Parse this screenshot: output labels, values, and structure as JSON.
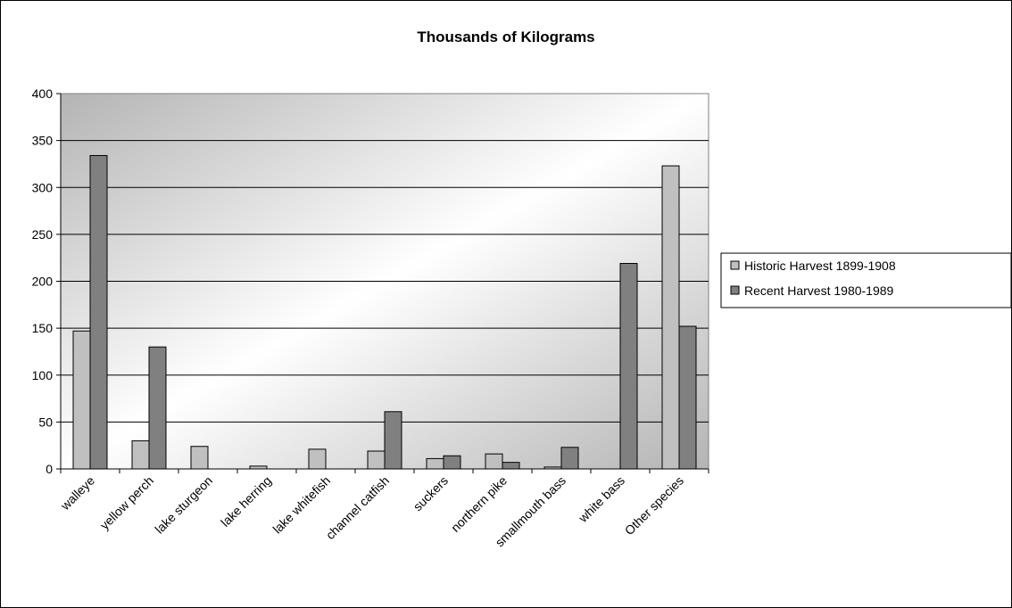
{
  "chart_data": {
    "type": "bar",
    "title": "Thousands of Kilograms",
    "xlabel": "",
    "ylabel": "",
    "ylim": [
      0,
      400
    ],
    "yticks": [
      0,
      50,
      100,
      150,
      200,
      250,
      300,
      350,
      400
    ],
    "grid": true,
    "legend_position": "right",
    "categories": [
      "walleye",
      "yellow perch",
      "lake sturgeon",
      "lake herring",
      "lake whitefish",
      "channel catfish",
      "suckers",
      "northern pike",
      "smallmouth bass",
      "white bass",
      "Other species"
    ],
    "series": [
      {
        "name": "Historic Harvest 1899-1908",
        "color": "#c0c0c0",
        "values": [
          147,
          30,
          24,
          3,
          21,
          19,
          11,
          16,
          2,
          0,
          323
        ]
      },
      {
        "name": "Recent Harvest 1980-1989",
        "color": "#808080",
        "values": [
          334,
          130,
          0,
          0,
          0,
          61,
          14,
          7,
          23,
          219,
          152
        ]
      }
    ]
  }
}
